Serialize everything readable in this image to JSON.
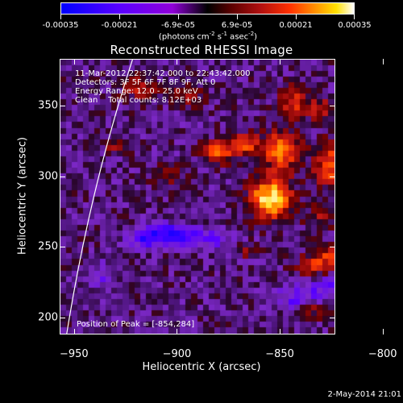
{
  "colorbar": {
    "tick_labels": [
      "-0.00035",
      "-0.00021",
      "-6.9e-05",
      "6.9e-05",
      "0.00021",
      "0.00035"
    ],
    "units_main": "(photons cm",
    "units_exp1": "-2",
    "units_mid1": " s",
    "units_exp2": "-1",
    "units_mid2": " asec",
    "units_exp3": "-2",
    "units_end": ")",
    "range": [
      -0.00035,
      0.00035
    ]
  },
  "chart_data": {
    "type": "heatmap",
    "title": "Reconstructed RHESSI Image",
    "xlabel": "Heliocentric X (arcsec)",
    "ylabel": "Heliocentric Y (arcsec)",
    "xlim": [
      -957,
      -823
    ],
    "ylim": [
      188,
      383
    ],
    "xticks": [
      -950,
      -900,
      -850,
      -800
    ],
    "xtick_labels": [
      "−950",
      "−900",
      "−850",
      "−800"
    ],
    "yticks": [
      200,
      250,
      300,
      350
    ],
    "ytick_labels": [
      "200",
      "250",
      "300",
      "350"
    ],
    "peak": [
      -854,
      284
    ],
    "info_lines": [
      "11-Mar-2012 22:37:42.000 to 22:43:42.000",
      "Detectors: 3F 5F 6F 7F 8F 9F, Att 0",
      "Energy Range: 12.0 - 25.0 keV",
      "Clean    Total counts: 8.12E+03"
    ],
    "peak_label": "Position of Peak = [-854,284]"
  },
  "timestamp": "2-May-2014 21:01"
}
